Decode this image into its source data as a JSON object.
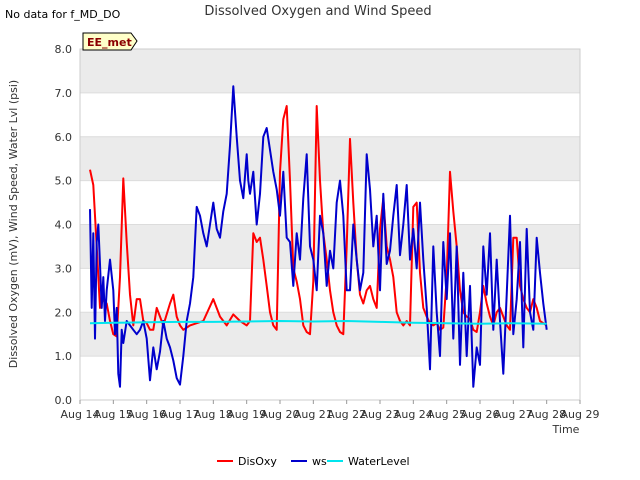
{
  "note": "No data for f_MD_DO",
  "badge": "EE_met",
  "colors": {
    "band": "#ebebeb",
    "grid": "#dcdcdc",
    "badge_fill": "#ffffc8"
  },
  "chart_data": {
    "type": "line",
    "title": "Dissolved Oxygen and Wind Speed",
    "xlabel": "Time",
    "ylabel": "Dissolved Oxygen (mV), Wind Speed, Water Lvl (psi)",
    "ylim": [
      0,
      8
    ],
    "xlim": [
      0,
      15
    ],
    "x_tick_values": [
      0,
      1,
      2,
      3,
      4,
      5,
      6,
      7,
      8,
      9,
      10,
      11,
      12,
      13,
      14,
      15
    ],
    "x_tick_labels": [
      "Aug 14",
      "Aug 15",
      "Aug 16",
      "Aug 17",
      "Aug 18",
      "Aug 19",
      "Aug 20",
      "Aug 21",
      "Aug 22",
      "Aug 23",
      "Aug 24",
      "Aug 25",
      "Aug 26",
      "Aug 27",
      "Aug 28",
      "Aug 29"
    ],
    "y_tick_values": [
      0,
      1,
      2,
      3,
      4,
      5,
      6,
      7,
      8
    ],
    "y_tick_labels": [
      "0.0",
      "1.0",
      "2.0",
      "3.0",
      "4.0",
      "5.0",
      "6.0",
      "7.0",
      "8.0"
    ],
    "grid": true,
    "legend_position": "bottom",
    "series": [
      {
        "name": "DisOxy",
        "color": "#ff0000",
        "x": [
          0.3,
          0.4,
          0.5,
          0.6,
          0.7,
          0.8,
          0.9,
          1.0,
          1.1,
          1.2,
          1.3,
          1.4,
          1.5,
          1.6,
          1.7,
          1.8,
          1.9,
          2.0,
          2.1,
          2.2,
          2.3,
          2.5,
          2.7,
          2.8,
          2.9,
          3.0,
          3.1,
          3.2,
          3.3,
          3.5,
          3.7,
          4.0,
          4.2,
          4.4,
          4.6,
          4.8,
          5.0,
          5.1,
          5.2,
          5.3,
          5.4,
          5.5,
          5.6,
          5.7,
          5.8,
          5.9,
          6.0,
          6.1,
          6.2,
          6.3,
          6.4,
          6.5,
          6.6,
          6.7,
          6.8,
          6.9,
          7.0,
          7.1,
          7.2,
          7.3,
          7.4,
          7.5,
          7.6,
          7.7,
          7.8,
          7.9,
          8.0,
          8.1,
          8.2,
          8.3,
          8.4,
          8.5,
          8.6,
          8.7,
          8.8,
          8.9,
          9.0,
          9.1,
          9.2,
          9.3,
          9.4,
          9.5,
          9.6,
          9.7,
          9.8,
          9.9,
          10.0,
          10.1,
          10.2,
          10.3,
          10.4,
          10.5,
          10.6,
          10.7,
          10.8,
          10.9,
          11.0,
          11.1,
          11.2,
          11.3,
          11.4,
          11.5,
          11.6,
          11.7,
          11.8,
          11.9,
          12.0,
          12.1,
          12.2,
          12.3,
          12.4,
          12.5,
          12.6,
          12.7,
          12.8,
          12.9,
          13.0,
          13.1,
          13.2,
          13.3,
          13.4,
          13.5,
          13.6,
          13.7,
          13.8,
          13.9,
          14.0
        ],
        "y": [
          5.25,
          4.9,
          3.5,
          2.1,
          2.3,
          2.2,
          1.8,
          1.5,
          1.45,
          2.8,
          5.05,
          3.6,
          2.4,
          1.7,
          2.3,
          2.3,
          1.8,
          1.75,
          1.6,
          1.6,
          2.1,
          1.7,
          2.2,
          2.4,
          1.9,
          1.7,
          1.6,
          1.65,
          1.7,
          1.75,
          1.8,
          2.3,
          1.9,
          1.7,
          1.95,
          1.8,
          1.7,
          1.8,
          3.8,
          3.6,
          3.7,
          3.2,
          2.6,
          2.0,
          1.7,
          1.6,
          5.2,
          6.4,
          6.7,
          5.0,
          3.0,
          2.7,
          2.3,
          1.7,
          1.55,
          1.5,
          2.7,
          6.7,
          5.0,
          3.8,
          3.2,
          2.5,
          2.0,
          1.7,
          1.55,
          1.5,
          3.5,
          5.95,
          4.5,
          3.2,
          2.4,
          2.2,
          2.5,
          2.6,
          2.3,
          2.1,
          3.9,
          4.6,
          3.5,
          3.2,
          2.8,
          2.0,
          1.8,
          1.7,
          1.8,
          1.7,
          4.4,
          4.5,
          2.9,
          2.1,
          1.9,
          1.75,
          1.7,
          1.75,
          1.6,
          1.65,
          2.8,
          5.2,
          4.3,
          3.5,
          2.5,
          2.0,
          1.9,
          1.85,
          1.6,
          1.55,
          2.0,
          2.6,
          2.2,
          1.9,
          1.7,
          2.0,
          2.1,
          1.9,
          1.7,
          1.6,
          3.7,
          3.7,
          2.6,
          2.3,
          2.1,
          2.0,
          2.3,
          2.1,
          1.8,
          1.75,
          1.7
        ]
      },
      {
        "name": "ws",
        "color": "#0000cc",
        "x": [
          0.3,
          0.35,
          0.4,
          0.45,
          0.5,
          0.55,
          0.6,
          0.65,
          0.7,
          0.75,
          0.8,
          0.9,
          1.0,
          1.05,
          1.1,
          1.15,
          1.2,
          1.25,
          1.3,
          1.4,
          1.5,
          1.6,
          1.7,
          1.8,
          1.9,
          2.0,
          2.1,
          2.2,
          2.3,
          2.4,
          2.5,
          2.6,
          2.7,
          2.8,
          2.9,
          3.0,
          3.1,
          3.2,
          3.3,
          3.4,
          3.5,
          3.6,
          3.7,
          3.8,
          3.9,
          4.0,
          4.1,
          4.2,
          4.3,
          4.4,
          4.5,
          4.6,
          4.7,
          4.8,
          4.9,
          5.0,
          5.05,
          5.1,
          5.2,
          5.3,
          5.4,
          5.5,
          5.6,
          5.7,
          5.8,
          5.9,
          6.0,
          6.1,
          6.2,
          6.3,
          6.4,
          6.5,
          6.6,
          6.7,
          6.8,
          6.9,
          7.0,
          7.1,
          7.2,
          7.3,
          7.4,
          7.5,
          7.6,
          7.7,
          7.8,
          7.9,
          8.0,
          8.1,
          8.2,
          8.3,
          8.4,
          8.5,
          8.6,
          8.7,
          8.8,
          8.9,
          9.0,
          9.1,
          9.2,
          9.3,
          9.4,
          9.5,
          9.6,
          9.7,
          9.8,
          9.9,
          10.0,
          10.1,
          10.2,
          10.3,
          10.4,
          10.5,
          10.6,
          10.7,
          10.8,
          10.9,
          11.0,
          11.1,
          11.2,
          11.3,
          11.4,
          11.5,
          11.6,
          11.7,
          11.8,
          11.9,
          12.0,
          12.1,
          12.2,
          12.3,
          12.4,
          12.5,
          12.6,
          12.7,
          12.8,
          12.9,
          13.0,
          13.1,
          13.2,
          13.3,
          13.4,
          13.5,
          13.6,
          13.7,
          13.8,
          13.9,
          14.0
        ],
        "y": [
          4.35,
          2.1,
          3.8,
          1.4,
          3.6,
          4.0,
          3.1,
          2.1,
          2.8,
          1.8,
          2.5,
          3.2,
          2.5,
          1.5,
          2.1,
          0.6,
          0.3,
          1.6,
          1.3,
          1.8,
          1.7,
          1.6,
          1.5,
          1.6,
          1.8,
          1.4,
          0.45,
          1.2,
          0.7,
          1.1,
          1.8,
          1.4,
          1.2,
          0.9,
          0.5,
          0.35,
          1.0,
          1.8,
          2.2,
          2.8,
          4.4,
          4.2,
          3.8,
          3.5,
          4.0,
          4.5,
          3.9,
          3.7,
          4.3,
          4.7,
          5.8,
          7.15,
          6.0,
          5.0,
          4.6,
          5.6,
          5.0,
          4.7,
          5.2,
          4.0,
          4.7,
          6.0,
          6.2,
          5.7,
          5.2,
          4.8,
          4.2,
          5.2,
          3.7,
          3.6,
          2.6,
          3.8,
          3.2,
          4.6,
          5.6,
          3.5,
          3.2,
          2.5,
          4.2,
          3.8,
          2.6,
          3.4,
          3.0,
          4.5,
          5.0,
          4.2,
          2.5,
          2.5,
          4.0,
          3.2,
          2.5,
          2.9,
          5.6,
          4.8,
          3.5,
          4.2,
          2.5,
          4.7,
          3.1,
          3.4,
          4.2,
          4.9,
          3.3,
          4.0,
          4.9,
          3.2,
          3.9,
          3.0,
          4.5,
          3.2,
          2.1,
          0.7,
          3.5,
          2.0,
          1.0,
          3.6,
          2.3,
          3.8,
          1.4,
          3.5,
          0.8,
          2.9,
          1.0,
          2.6,
          0.3,
          1.2,
          0.8,
          3.5,
          2.4,
          3.8,
          1.6,
          3.2,
          1.8,
          0.6,
          2.4,
          4.2,
          1.5,
          2.3,
          3.6,
          1.2,
          3.9,
          2.0,
          1.6,
          3.7,
          2.9,
          2.2,
          1.6
        ]
      },
      {
        "name": "WaterLevel",
        "color": "#00e5ee",
        "x": [
          0.3,
          1.0,
          2.0,
          3.0,
          4.0,
          5.0,
          6.0,
          7.0,
          8.0,
          9.0,
          10.0,
          11.0,
          12.0,
          13.0,
          14.0
        ],
        "y": [
          1.75,
          1.76,
          1.77,
          1.78,
          1.78,
          1.79,
          1.8,
          1.79,
          1.8,
          1.78,
          1.76,
          1.75,
          1.74,
          1.75,
          1.74
        ]
      }
    ]
  }
}
